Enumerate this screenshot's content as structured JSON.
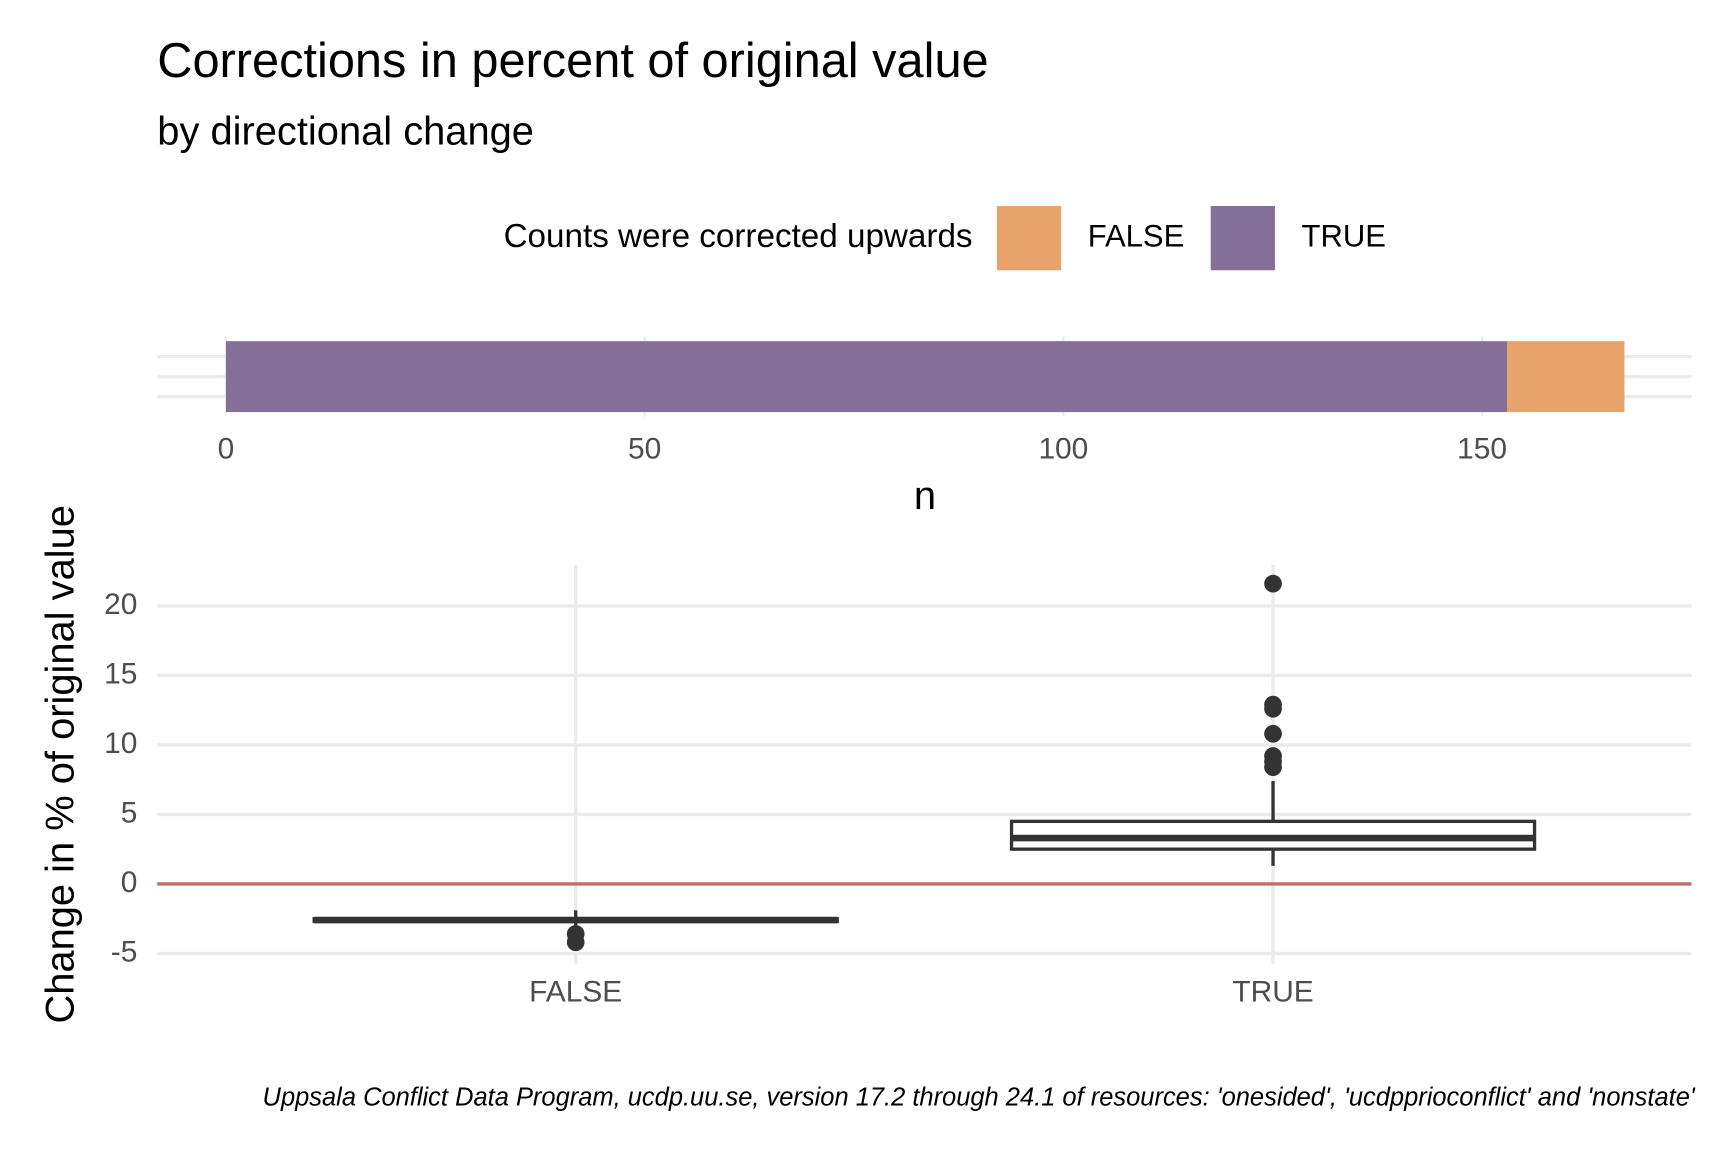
{
  "chart_data": [
    {
      "type": "stacked_barh",
      "title": "Corrections in percent of original value",
      "subtitle": "by directional change",
      "legend_title": "Counts were corrected upwards",
      "legend_position": "top",
      "series": [
        {
          "name": "FALSE",
          "color": "#E8A36A",
          "values": [
            14
          ]
        },
        {
          "name": "TRUE",
          "color": "#846F99",
          "values": [
            153
          ]
        }
      ],
      "stack_order": [
        "TRUE",
        "FALSE"
      ],
      "xlabel": "n",
      "xlim": [
        -8.2,
        175
      ],
      "xticks": [
        0,
        50,
        100,
        150
      ],
      "grid": true
    },
    {
      "type": "boxplot",
      "ylabel": "Change in % of original value",
      "categories": [
        "FALSE",
        "TRUE"
      ],
      "boxes": [
        {
          "min": -3.2,
          "q1": -2.7,
          "median": -2.6,
          "q3": -2.5,
          "max": -1.9,
          "outliers": [
            -3.6,
            -4.2
          ]
        },
        {
          "min": 1.3,
          "q1": 2.5,
          "median": 3.3,
          "q3": 4.5,
          "max": 7.4,
          "outliers": [
            21.6,
            12.9,
            12.6,
            10.8,
            9.2,
            8.8,
            8.4
          ]
        }
      ],
      "color": "#333333",
      "hline": {
        "value": 0,
        "color": "#C0706A"
      },
      "ylim": [
        -5.74,
        22.55
      ],
      "yticks": [
        -5,
        0,
        5,
        10,
        15,
        20
      ],
      "grid": true,
      "caption": "Uppsala Conflict Data Program, ucdp.uu.se, version 17.2 through 24.1 of resources: 'onesided', 'ucdpprioconflict' and 'nonstate'"
    }
  ]
}
